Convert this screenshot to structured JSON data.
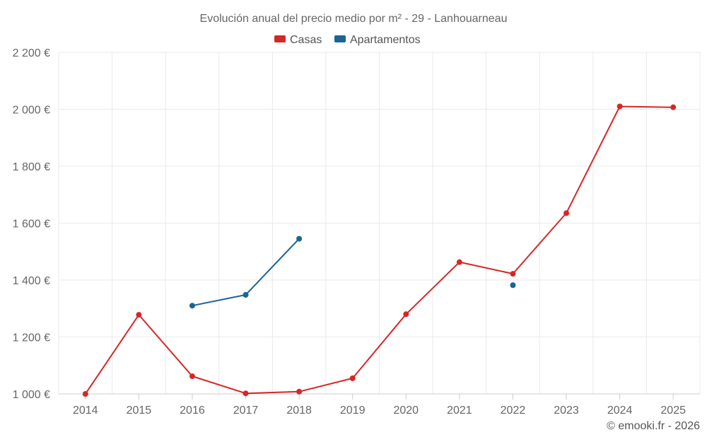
{
  "chart_data": {
    "type": "line",
    "title": "Evolución anual del precio medio por m² - 29 - Lanhouarneau",
    "categories": [
      "2014",
      "2015",
      "2016",
      "2017",
      "2018",
      "2019",
      "2020",
      "2021",
      "2022",
      "2023",
      "2024",
      "2025"
    ],
    "ylim": [
      1000,
      2200
    ],
    "yticks": [
      1000,
      1200,
      1400,
      1600,
      1800,
      2000,
      2200
    ],
    "ytick_labels": [
      "1 000 €",
      "1 200 €",
      "1 400 €",
      "1 600 €",
      "1 800 €",
      "2 000 €",
      "2 200 €"
    ],
    "grid": true,
    "legend_position": "top-center",
    "series": [
      {
        "name": "Casas",
        "color": "#d62728",
        "values": [
          1000,
          1278,
          1062,
          1002,
          1008,
          1055,
          1280,
          1463,
          1422,
          1635,
          2010,
          2007
        ]
      },
      {
        "name": "Apartamentos",
        "color": "#1a6496",
        "values": [
          null,
          null,
          1310,
          1348,
          1545,
          null,
          null,
          null,
          1382,
          null,
          null,
          null
        ]
      }
    ]
  },
  "credit": "© emooki.fr - 2026"
}
